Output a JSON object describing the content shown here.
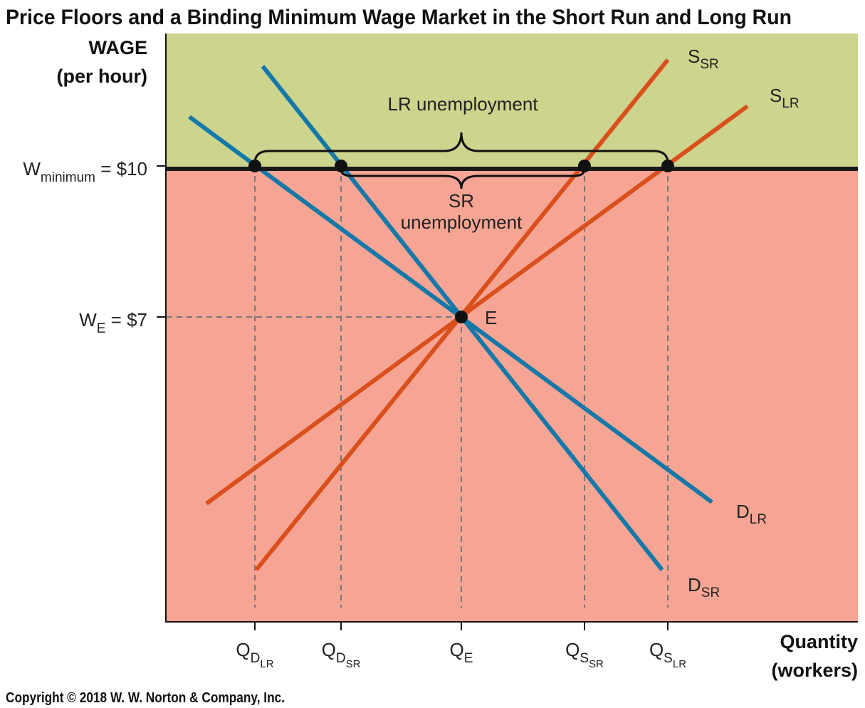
{
  "chart_data": {
    "type": "line",
    "title": "Price Floors and a Binding Minimum Wage Market in the Short Run and Long Run",
    "copyright": "Copyright © 2018 W. W. Norton & Company, Inc.",
    "ylabel": [
      "WAGE",
      "(per hour)"
    ],
    "xlabel": [
      "Quantity",
      "(workers)"
    ],
    "colors": {
      "upper_region": "#ccd48d",
      "lower_region": "#f6a594",
      "demand": "#1478a8",
      "supply": "#d9501c",
      "floor_line": "#1a1a1a",
      "guides": "#777777"
    },
    "y_ticks": [
      {
        "value": 10,
        "main": "W",
        "sub": "minimum",
        "suffix": " = $10"
      },
      {
        "value": 7,
        "main": "W",
        "sub": "E",
        "suffix": " = $7"
      }
    ],
    "x_ticks": [
      {
        "key": "qdlr",
        "main": "Q",
        "sub": "D",
        "subsub": "LR"
      },
      {
        "key": "qdsr",
        "main": "Q",
        "sub": "D",
        "subsub": "SR"
      },
      {
        "key": "qe",
        "main": "Q",
        "sub": "E",
        "subsub": ""
      },
      {
        "key": "qssr",
        "main": "Q",
        "sub": "S",
        "subsub": "SR"
      },
      {
        "key": "qslr",
        "main": "Q",
        "sub": "S",
        "subsub": "LR"
      }
    ],
    "series": [
      {
        "name": "S",
        "sub": "SR",
        "role": "supply"
      },
      {
        "name": "S",
        "sub": "LR",
        "role": "supply"
      },
      {
        "name": "D",
        "sub": "LR",
        "role": "demand"
      },
      {
        "name": "D",
        "sub": "SR",
        "role": "demand"
      }
    ],
    "minimum_wage": 10,
    "equilibrium_wage": 7,
    "equilibrium_label": "E",
    "annotations": {
      "lr_unemployment": "LR unemployment",
      "sr_unemployment_line1": "SR",
      "sr_unemployment_line2": "unemployment"
    }
  }
}
